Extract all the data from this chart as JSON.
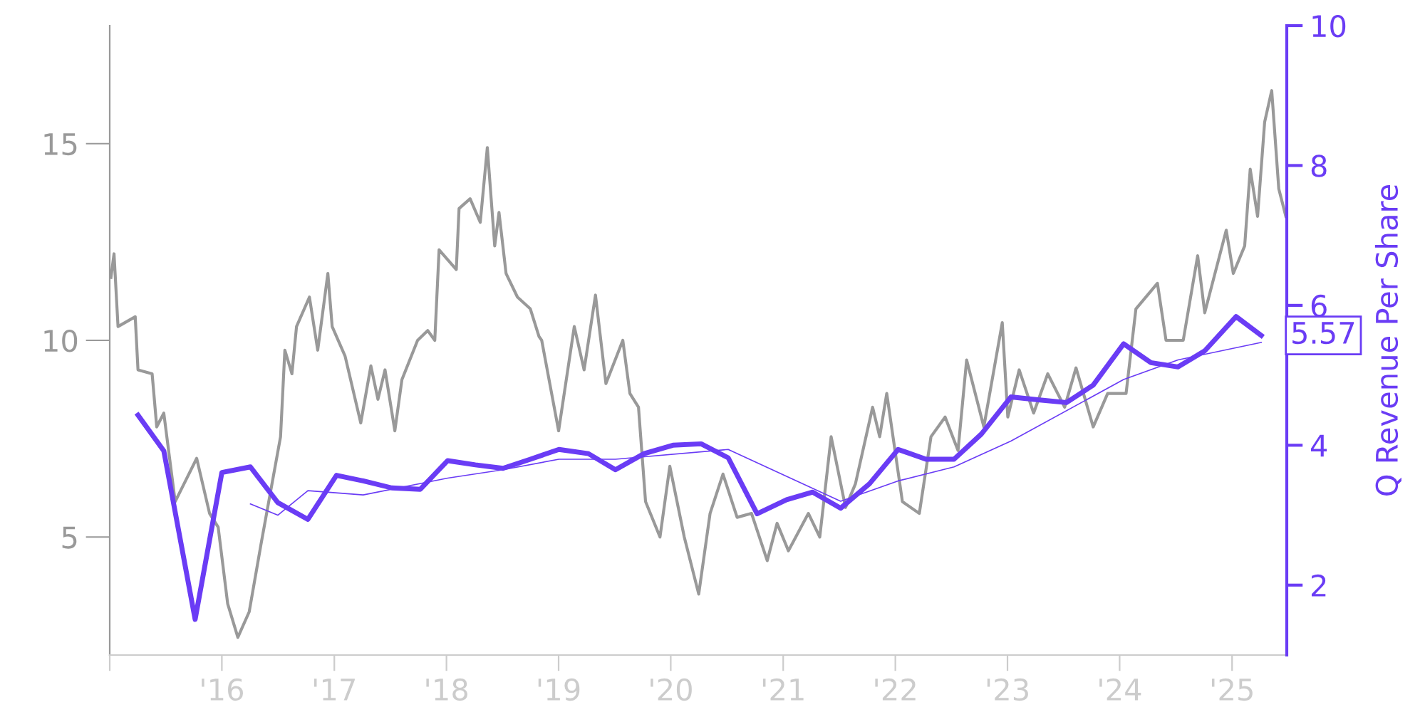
{
  "chart_data": {
    "type": "line",
    "y2label": "Q Revenue Per Share",
    "xlim": [
      "2015-01-01",
      "2025-06-28"
    ],
    "xticks": [
      {
        "value": "2015-01-01",
        "label": null
      },
      {
        "value": "2016-01-01",
        "label": "'16"
      },
      {
        "value": "2017-01-01",
        "label": "'17"
      },
      {
        "value": "2018-01-01",
        "label": "'18"
      },
      {
        "value": "2019-01-01",
        "label": "'19"
      },
      {
        "value": "2020-01-01",
        "label": "'20"
      },
      {
        "value": "2021-01-01",
        "label": "'21"
      },
      {
        "value": "2022-01-01",
        "label": "'22"
      },
      {
        "value": "2023-01-01",
        "label": "'23"
      },
      {
        "value": "2024-01-01",
        "label": "'24"
      },
      {
        "value": "2025-01-01",
        "label": "'25"
      }
    ],
    "ylim": [
      2,
      18
    ],
    "yticks": [
      5,
      10,
      15
    ],
    "y2lim": [
      1,
      10
    ],
    "y2ticks": [
      2,
      4,
      6,
      8,
      10
    ],
    "grid": false,
    "legend": false,
    "marker": "none",
    "line_style": "solid",
    "series": [
      {
        "color": "#999999",
        "x": [
          "2015-01-05",
          "2015-01-15",
          "2015-01-28",
          "2015-03-25",
          "2015-04-03",
          "2015-05-19",
          "2015-06-03",
          "2015-06-26",
          "2015-08-02",
          "2015-10-11",
          "2015-11-22",
          "2015-12-20",
          "2016-01-20",
          "2016-02-22",
          "2016-03-30",
          "2016-05-07",
          "2016-07-10",
          "2016-07-24",
          "2016-08-16",
          "2016-08-31",
          "2016-10-12",
          "2016-11-08",
          "2016-12-11",
          "2016-12-25",
          "2017-02-05",
          "2017-03-28",
          "2017-04-30",
          "2017-05-23",
          "2017-06-15",
          "2017-07-17",
          "2017-08-09",
          "2017-09-29",
          "2017-11-01",
          "2017-11-24",
          "2017-12-08",
          "2018-02-02",
          "2018-02-11",
          "2018-03-19",
          "2018-04-21",
          "2018-05-14",
          "2018-06-07",
          "2018-06-21",
          "2018-07-14",
          "2018-08-20",
          "2018-10-01",
          "2018-10-29",
          "2018-11-07",
          "2019-01-01",
          "2019-02-21",
          "2019-03-25",
          "2019-05-01",
          "2019-06-04",
          "2019-07-29",
          "2019-08-21",
          "2019-09-18",
          "2019-10-11",
          "2019-11-27",
          "2019-12-29",
          "2020-02-14",
          "2020-04-01",
          "2020-05-08",
          "2020-06-19",
          "2020-08-04",
          "2020-09-20",
          "2020-11-10",
          "2020-12-12",
          "2021-01-18",
          "2021-03-24",
          "2021-04-30",
          "2021-06-06",
          "2021-07-23",
          "2021-08-24",
          "2021-10-19",
          "2021-11-11",
          "2021-12-04",
          "2022-01-24",
          "2022-03-20",
          "2022-04-27",
          "2022-06-12",
          "2022-07-24",
          "2022-08-21",
          "2022-10-16",
          "2022-12-15",
          "2023-01-02",
          "2023-02-08",
          "2023-03-27",
          "2023-05-12",
          "2023-07-06",
          "2023-08-12",
          "2023-10-07",
          "2023-11-23",
          "2024-01-22",
          "2024-02-23",
          "2024-05-03",
          "2024-05-31",
          "2024-07-26",
          "2024-09-11",
          "2024-10-04",
          "2024-12-13",
          "2025-01-05",
          "2025-02-11",
          "2025-03-01",
          "2025-03-25",
          "2025-04-17",
          "2025-05-10",
          "2025-06-02",
          "2025-06-25"
        ],
        "values": [
          11.6,
          12.2,
          10.35,
          10.6,
          9.25,
          9.15,
          7.8,
          8.15,
          5.9,
          7.0,
          5.6,
          5.25,
          3.3,
          2.45,
          3.1,
          4.8,
          7.55,
          9.75,
          9.15,
          10.35,
          11.1,
          9.75,
          11.7,
          10.35,
          9.6,
          7.9,
          9.35,
          8.5,
          9.25,
          7.7,
          9.0,
          10.0,
          10.25,
          10.0,
          12.3,
          11.8,
          13.35,
          13.6,
          13.0,
          14.9,
          12.4,
          13.25,
          11.7,
          11.1,
          10.8,
          10.1,
          10.0,
          7.7,
          10.35,
          9.25,
          11.15,
          8.9,
          10.0,
          8.65,
          8.3,
          5.9,
          5.0,
          6.8,
          5.0,
          3.55,
          5.6,
          6.6,
          5.5,
          5.6,
          4.4,
          5.35,
          4.65,
          5.6,
          5.0,
          7.55,
          5.75,
          6.35,
          8.3,
          7.55,
          8.65,
          5.9,
          5.6,
          7.55,
          8.05,
          7.2,
          9.5,
          7.8,
          10.45,
          8.05,
          9.25,
          8.15,
          9.15,
          8.3,
          9.3,
          7.8,
          8.65,
          8.65,
          10.8,
          11.45,
          10.0,
          10.0,
          12.15,
          10.7,
          12.8,
          11.7,
          12.4,
          14.35,
          13.15,
          15.55,
          16.35,
          13.85,
          13.15
        ]
      },
      {
        "axis": "y2",
        "color": "#6a3cf5",
        "x": [
          "2015-04-03",
          "2015-06-26",
          "2015-10-06",
          "2016-01-01",
          "2016-04-03",
          "2016-07-01",
          "2016-10-07",
          "2017-01-08",
          "2017-04-05",
          "2017-07-07",
          "2017-10-08",
          "2018-01-05",
          "2018-04-05",
          "2018-07-04",
          "2018-10-01",
          "2019-01-02",
          "2019-04-08",
          "2019-07-05",
          "2019-10-06",
          "2020-01-08",
          "2020-04-09",
          "2020-07-06",
          "2020-10-08",
          "2021-01-12",
          "2021-04-07",
          "2021-07-07",
          "2021-10-09",
          "2022-01-10",
          "2022-04-11",
          "2022-07-11",
          "2022-10-08",
          "2023-01-12",
          "2023-04-10",
          "2023-07-12",
          "2023-10-07",
          "2024-01-14",
          "2024-04-12",
          "2024-07-09",
          "2024-10-04",
          "2025-01-14",
          "2025-04-06"
        ],
        "values": [
          4.43,
          3.92,
          1.51,
          3.61,
          3.69,
          3.18,
          2.94,
          3.57,
          3.49,
          3.39,
          3.37,
          3.78,
          3.72,
          3.67,
          3.8,
          3.94,
          3.88,
          3.65,
          3.88,
          4.0,
          4.02,
          3.82,
          3.02,
          3.22,
          3.33,
          3.1,
          3.45,
          3.94,
          3.8,
          3.8,
          4.16,
          4.69,
          4.65,
          4.61,
          4.86,
          5.45,
          5.18,
          5.12,
          5.35,
          5.84,
          5.57
        ]
      },
      {
        "axis": "y2",
        "color": "#6a3cf5",
        "x": [
          "2016-04-03",
          "2016-07-01",
          "2016-10-07",
          "2017-04-05",
          "2018-01-05",
          "2018-07-04",
          "2019-01-02",
          "2019-07-05",
          "2020-07-06",
          "2021-07-07",
          "2022-01-10",
          "2022-07-11",
          "2023-01-12",
          "2024-01-14",
          "2024-07-09",
          "2025-04-06"
        ],
        "values": [
          3.16,
          3.0,
          3.35,
          3.29,
          3.53,
          3.65,
          3.8,
          3.8,
          3.94,
          3.2,
          3.49,
          3.69,
          4.06,
          4.94,
          5.22,
          5.47
        ]
      }
    ],
    "annotations": [
      "5.57"
    ]
  }
}
